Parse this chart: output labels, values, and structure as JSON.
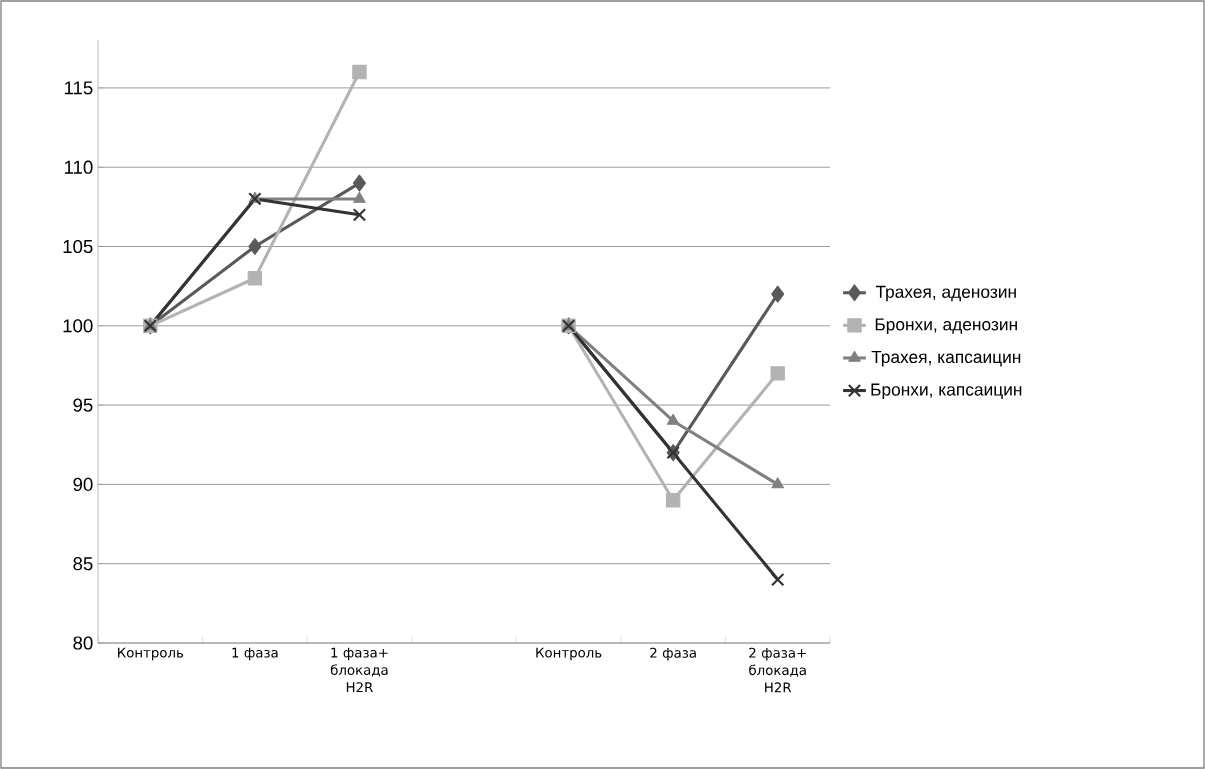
{
  "chart_data": {
    "type": "line",
    "categories": [
      "Контроль",
      "1 фаза",
      "1 фаза+ блокада H2R",
      null,
      "Контроль",
      "2 фаза",
      "2 фаза+ блокада H2R"
    ],
    "series": [
      {
        "name": "Трахея, аденозин",
        "color": "#595959",
        "marker": "diamond",
        "values": [
          100,
          105,
          109,
          null,
          100,
          92,
          102
        ]
      },
      {
        "name": "Бронхи, аденозин",
        "color": "#b3b3b3",
        "marker": "square",
        "values": [
          100,
          103,
          116,
          null,
          100,
          89,
          97
        ]
      },
      {
        "name": "Трахея, капсаицин",
        "color": "#808080",
        "marker": "triangle",
        "values": [
          100,
          108,
          108,
          null,
          100,
          94,
          90
        ]
      },
      {
        "name": "Бронхи, капсаицин",
        "color": "#333333",
        "marker": "cross",
        "values": [
          100,
          108,
          107,
          null,
          100,
          92,
          84
        ]
      }
    ],
    "ylim": [
      80,
      118
    ],
    "yticks": [
      80,
      85,
      90,
      95,
      100,
      105,
      110,
      115
    ],
    "grid": "y",
    "legend": "right"
  }
}
